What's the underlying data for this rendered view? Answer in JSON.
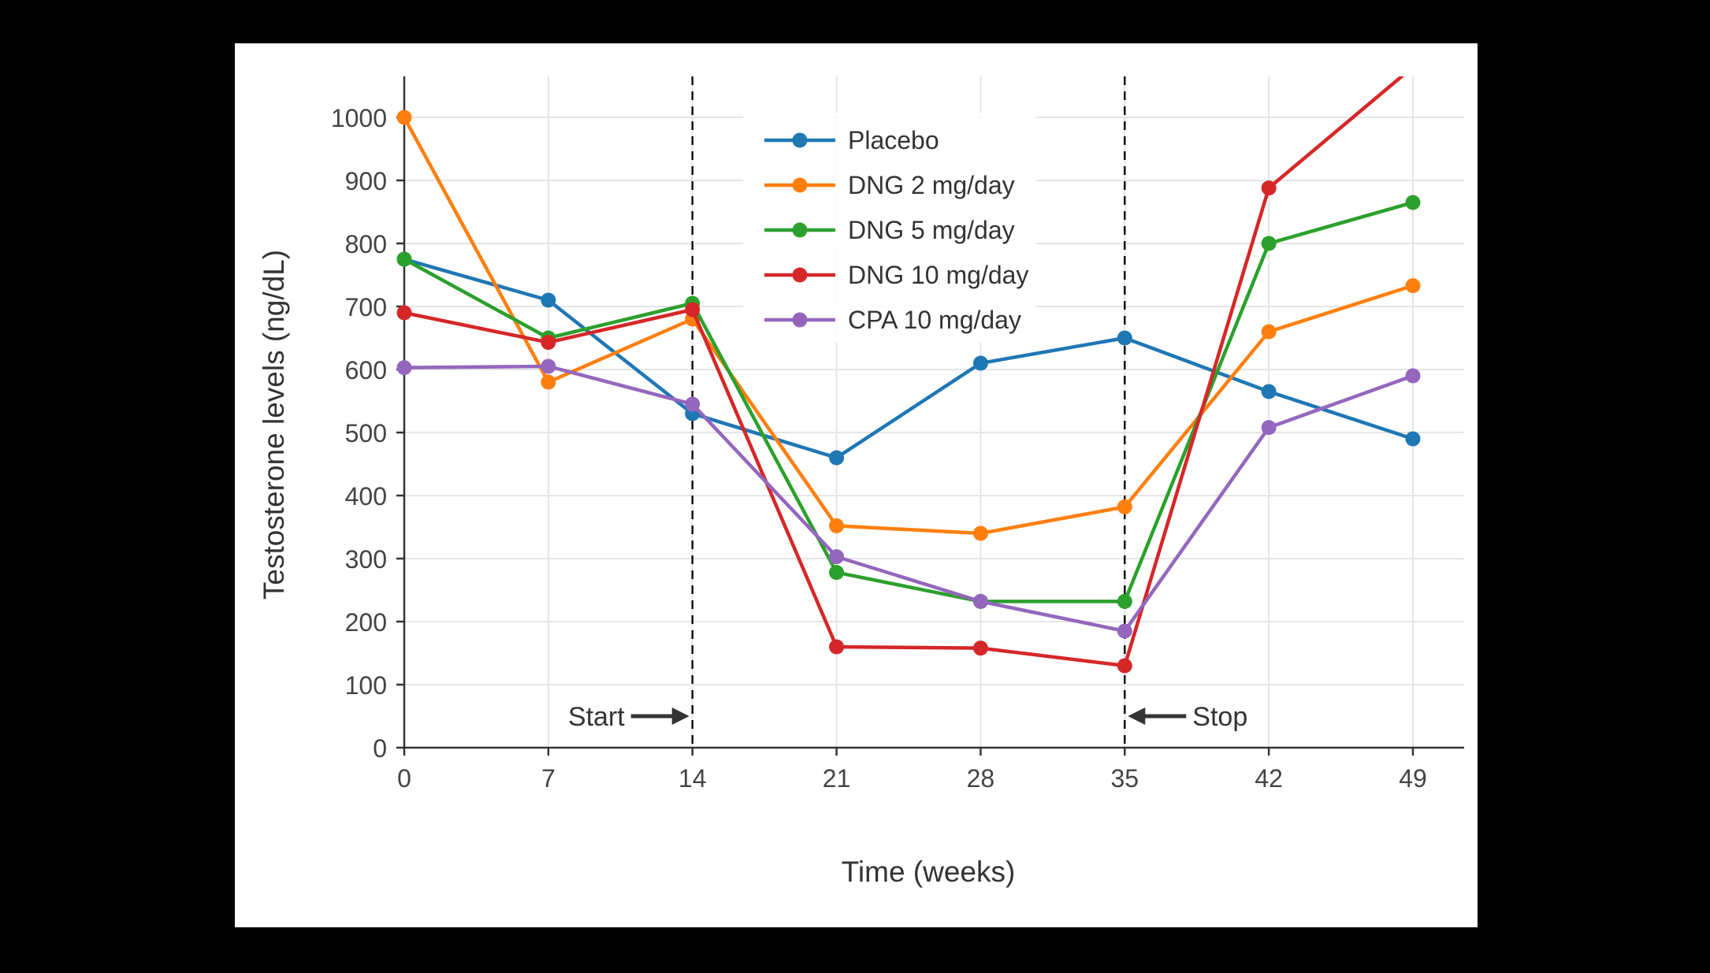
{
  "page": {
    "background_color": "#000000",
    "panel_color": "#ffffff"
  },
  "chart_data": {
    "type": "line",
    "title": "",
    "xlabel": "Time (weeks)",
    "ylabel": "Testosterone levels (ng/dL)",
    "x": [
      0,
      7,
      14,
      21,
      28,
      35,
      42,
      49
    ],
    "xticks": [
      0,
      7,
      14,
      21,
      28,
      35,
      42,
      49
    ],
    "yticks": [
      0,
      100,
      200,
      300,
      400,
      500,
      600,
      700,
      800,
      900,
      1000
    ],
    "ylim": [
      0,
      1065
    ],
    "xlim": [
      0,
      49
    ],
    "grid": true,
    "legend_position": "inside-top-center",
    "series": [
      {
        "name": "Placebo",
        "color": "#1f77b4",
        "values": [
          775,
          710,
          530,
          460,
          610,
          650,
          565,
          490
        ]
      },
      {
        "name": "DNG 2 mg/day",
        "color": "#ff7f0e",
        "values": [
          1000,
          580,
          680,
          352,
          340,
          382,
          660,
          733
        ]
      },
      {
        "name": "DNG 5 mg/day",
        "color": "#2ca02c",
        "values": [
          775,
          650,
          705,
          278,
          232,
          232,
          800,
          865
        ]
      },
      {
        "name": "DNG 10 mg/day",
        "color": "#d62728",
        "values": [
          690,
          643,
          695,
          160,
          158,
          130,
          888,
          1080
        ]
      },
      {
        "name": "CPA 10 mg/day",
        "color": "#9467bd",
        "values": [
          603,
          605,
          545,
          303,
          232,
          185,
          508,
          590
        ]
      }
    ],
    "reference_lines": [
      {
        "x": 14,
        "style": "dashed",
        "color": "#111111"
      },
      {
        "x": 35,
        "style": "dashed",
        "color": "#111111"
      }
    ],
    "annotations": [
      {
        "label": "Start",
        "x": 14,
        "y": 50,
        "text_side": "left",
        "arrow_direction": "right"
      },
      {
        "label": "Stop",
        "x": 35,
        "y": 50,
        "text_side": "right",
        "arrow_direction": "left"
      }
    ]
  },
  "style": {
    "grid_color": "#e5e5e5",
    "axis_color": "#333333",
    "tick_label_color": "#444444",
    "annotation_color": "#333333",
    "marker_radius": 9.5,
    "line_width": 4.5
  }
}
